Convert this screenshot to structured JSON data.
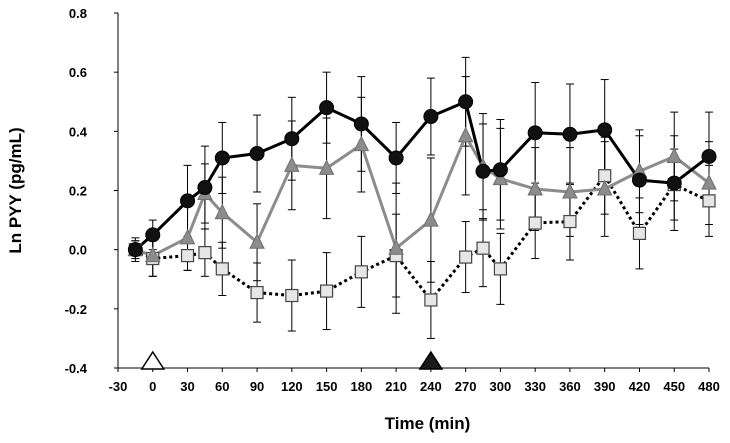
{
  "chart_data": {
    "type": "line",
    "title": "",
    "xlabel": "Time (min)",
    "ylabel": "Ln PYY (pg/mL)",
    "xlim": [
      -30,
      480
    ],
    "ylim": [
      -0.4,
      0.8
    ],
    "x_ticks": [
      "-30",
      "0",
      "30",
      "60",
      "90",
      "120",
      "150",
      "180",
      "210",
      "240",
      "270",
      "300",
      "330",
      "360",
      "390",
      "420",
      "450",
      "480"
    ],
    "y_ticks": [
      "-0.4",
      "-0.2",
      "0.0",
      "0.2",
      "0.4",
      "0.6",
      "0.8"
    ],
    "grid": false,
    "colors": {
      "series_black": "#000000",
      "series_gray": "#8c8c8c",
      "series_square_fill": "#e6e6e6",
      "error_bar": "#000000",
      "open_marker_fill": "#ffffff",
      "filled_marker_fill": "#1a1a1a"
    },
    "event_markers": [
      {
        "x": 0,
        "style": "open-triangle"
      },
      {
        "x": 240,
        "style": "filled-triangle"
      }
    ],
    "series": [
      {
        "name": "black circles (solid line)",
        "marker": "circle",
        "line_style": "solid",
        "color": "#000000",
        "x": [
          -15,
          0,
          30,
          45,
          60,
          90,
          120,
          150,
          180,
          210,
          240,
          270,
          285,
          300,
          330,
          360,
          390,
          420,
          450,
          480
        ],
        "y": [
          0.0,
          0.05,
          0.165,
          0.21,
          0.31,
          0.325,
          0.375,
          0.48,
          0.425,
          0.31,
          0.45,
          0.5,
          0.265,
          0.27,
          0.395,
          0.39,
          0.405,
          0.235,
          0.225,
          0.315
        ],
        "err": [
          0.04,
          0.05,
          0.12,
          0.14,
          0.12,
          0.13,
          0.14,
          0.12,
          0.16,
          0.12,
          0.13,
          0.15,
          0.16,
          0.17,
          0.17,
          0.17,
          0.17,
          0.15,
          0.16,
          0.15
        ]
      },
      {
        "name": "gray triangles (solid line)",
        "marker": "triangle",
        "line_style": "solid",
        "color": "#8c8c8c",
        "x": [
          -15,
          0,
          30,
          45,
          60,
          90,
          120,
          150,
          180,
          210,
          240,
          270,
          285,
          300,
          330,
          360,
          390,
          420,
          450,
          480
        ],
        "y": [
          0.0,
          -0.02,
          0.04,
          0.19,
          0.125,
          0.025,
          0.285,
          0.275,
          0.355,
          0.005,
          0.1,
          0.385,
          0.28,
          0.24,
          0.205,
          0.195,
          0.205,
          0.265,
          0.315,
          0.225
        ],
        "err": [
          0.03,
          0.07,
          0.11,
          0.1,
          0.12,
          0.13,
          0.15,
          0.17,
          0.16,
          0.22,
          0.21,
          0.2,
          0.18,
          0.17,
          0.14,
          0.15,
          0.16,
          0.14,
          0.15,
          0.14
        ]
      },
      {
        "name": "white squares (dotted line)",
        "marker": "square",
        "line_style": "dotted",
        "color": "#000000",
        "x": [
          -15,
          0,
          30,
          45,
          60,
          90,
          120,
          150,
          180,
          210,
          240,
          270,
          285,
          300,
          330,
          360,
          390,
          420,
          450,
          480
        ],
        "y": [
          0.0,
          -0.03,
          -0.02,
          -0.01,
          -0.065,
          -0.145,
          -0.155,
          -0.14,
          -0.075,
          -0.02,
          -0.17,
          -0.025,
          0.005,
          -0.065,
          0.09,
          0.095,
          0.25,
          0.055,
          0.22,
          0.165
        ],
        "err": [
          0.03,
          0.06,
          0.05,
          0.08,
          0.09,
          0.1,
          0.12,
          0.13,
          0.12,
          0.14,
          0.13,
          0.12,
          0.13,
          0.12,
          0.12,
          0.13,
          0.13,
          0.12,
          0.12,
          0.12
        ]
      }
    ]
  }
}
